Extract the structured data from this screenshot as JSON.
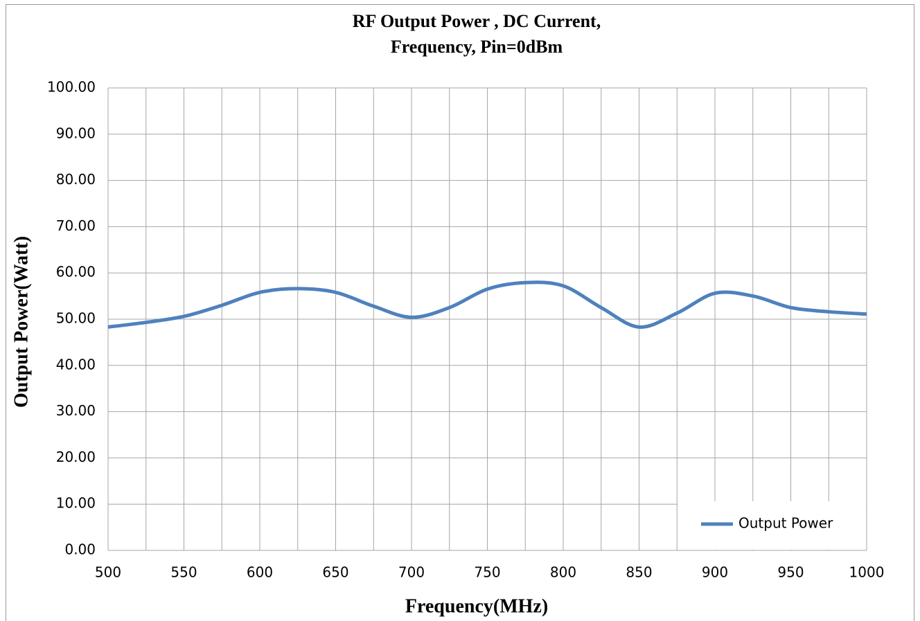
{
  "chart_data": {
    "type": "line",
    "title": [
      "RF Output Power , DC Current,",
      "Frequency, Pin=0dBm"
    ],
    "xlabel": "Frequency(MHz)",
    "ylabel": "Output Power(Watt)",
    "x": [
      500,
      525,
      550,
      575,
      600,
      625,
      650,
      675,
      700,
      725,
      750,
      775,
      800,
      825,
      850,
      875,
      900,
      925,
      950,
      975,
      1000
    ],
    "series": [
      {
        "name": "Output Power",
        "color": "#4f81bd",
        "values": [
          48.3,
          49.3,
          50.6,
          53.0,
          55.8,
          56.6,
          55.8,
          52.8,
          50.4,
          52.5,
          56.5,
          57.9,
          57.2,
          52.5,
          48.3,
          51.3,
          55.6,
          55.0,
          52.5,
          51.6,
          51.1
        ]
      }
    ],
    "xlim": [
      500,
      1000
    ],
    "xticks": [
      500,
      550,
      600,
      650,
      700,
      750,
      800,
      850,
      900,
      950,
      1000
    ],
    "xminorticks": [
      525,
      575,
      625,
      675,
      725,
      775,
      825,
      875,
      925,
      975
    ],
    "ylim": [
      0,
      100
    ],
    "yticks": [
      {
        "value": 0,
        "label": "0.00"
      },
      {
        "value": 10,
        "label": "10.00"
      },
      {
        "value": 20,
        "label": "20.00"
      },
      {
        "value": 30,
        "label": "30.00"
      },
      {
        "value": 40,
        "label": "40.00"
      },
      {
        "value": 50,
        "label": "50.00"
      },
      {
        "value": 60,
        "label": "60.00"
      },
      {
        "value": 70,
        "label": "70.00"
      },
      {
        "value": 80,
        "label": "80.00"
      },
      {
        "value": 90,
        "label": "90.00"
      },
      {
        "value": 100,
        "label": "100.00"
      }
    ],
    "grid": true,
    "legend": "lower right"
  }
}
